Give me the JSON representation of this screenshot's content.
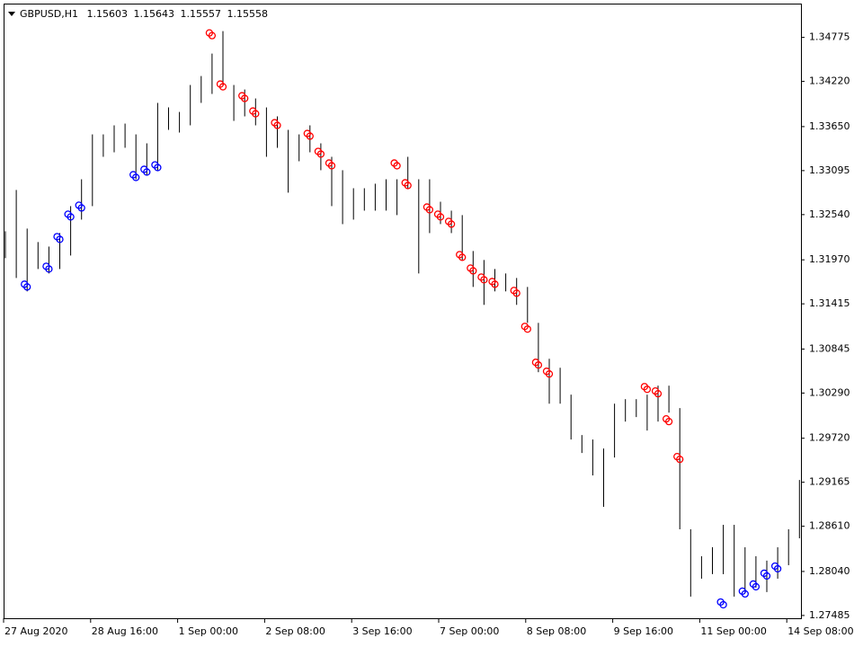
{
  "header": {
    "symbol": "GBPUSD,H1",
    "quote": [
      1.15603,
      1.15643,
      1.15557,
      1.15558
    ]
  },
  "chart_data": {
    "type": "hilo",
    "bar_color": "#000000",
    "categories": [
      "27 Aug 2020",
      null,
      null,
      null,
      null,
      null,
      null,
      null,
      "28 Aug 16:00",
      null,
      null,
      null,
      null,
      null,
      null,
      null,
      "1 Sep 00:00",
      null,
      null,
      null,
      null,
      null,
      null,
      null,
      "2 Sep 08:00",
      null,
      null,
      null,
      null,
      null,
      null,
      null,
      "3 Sep 16:00",
      null,
      null,
      null,
      null,
      null,
      null,
      null,
      "7 Sep 00:00",
      null,
      null,
      null,
      null,
      null,
      null,
      null,
      "8 Sep 08:00",
      null,
      null,
      null,
      null,
      null,
      null,
      null,
      "9 Sep 16:00",
      null,
      null,
      null,
      null,
      null,
      null,
      null,
      "11 Sep 00:00",
      null,
      null,
      null,
      null,
      null,
      null,
      null,
      "14 Sep 08:00",
      null
    ],
    "high": [
      1.3233,
      1.32851,
      1.32364,
      1.32194,
      1.32137,
      1.32307,
      1.32647,
      1.32986,
      1.33552,
      1.33552,
      1.33666,
      1.33688,
      1.33552,
      1.33439,
      1.33949,
      1.33892,
      1.33835,
      1.34175,
      1.34288,
      1.34571,
      1.34854,
      1.34175,
      1.34118,
      1.34005,
      1.33892,
      1.33779,
      1.33609,
      1.33552,
      1.33666,
      1.33439,
      1.33269,
      1.331,
      1.32873,
      1.32873,
      1.3293,
      1.32986,
      1.32986,
      1.33269,
      1.32986,
      1.32986,
      1.32703,
      1.3259,
      1.32534,
      1.32081,
      1.31968,
      1.31854,
      1.31798,
      1.31741,
      1.31628,
      1.31175,
      1.30722,
      1.30609,
      1.3027,
      1.2976,
      1.29704,
      1.2959,
      1.30156,
      1.30213,
      1.30213,
      1.3027,
      1.30383,
      1.30383,
      1.301,
      1.28572,
      1.28232,
      1.28345,
      1.28628,
      1.28628,
      1.28345,
      1.28232,
      1.28176,
      1.28345,
      1.28572,
      1.29194
    ],
    "low": [
      1.3199,
      1.31741,
      1.31572,
      1.31854,
      1.31798,
      1.31854,
      1.32024,
      1.32477,
      1.32647,
      1.33269,
      1.33326,
      1.33383,
      1.32986,
      1.33043,
      1.331,
      1.33609,
      1.33575,
      1.33666,
      1.33949,
      1.34062,
      1.34175,
      1.33722,
      1.33779,
      1.33666,
      1.33269,
      1.33383,
      1.32817,
      1.33213,
      1.33326,
      1.331,
      1.32647,
      1.3242,
      1.32477,
      1.3259,
      1.3259,
      1.3259,
      1.32534,
      1.32873,
      1.31798,
      1.32307,
      1.3242,
      1.32307,
      1.31968,
      1.31628,
      1.31402,
      1.31572,
      1.31572,
      1.31402,
      1.31175,
      1.30553,
      1.30156,
      1.30156,
      1.29704,
      1.29534,
      1.29251,
      1.28855,
      1.29477,
      1.2993,
      1.29987,
      1.29817,
      1.2993,
      1.30043,
      1.28572,
      1.27723,
      1.27949,
      1.28006,
      1.28006,
      1.27723,
      1.2778,
      1.27836,
      1.2778,
      1.27949,
      1.28119,
      1.28458
    ],
    "buy_signals": {
      "color": "#0000ff",
      "values": [
        null,
        null,
        1.31651,
        null,
        1.31877,
        1.32251,
        1.32534,
        1.32647,
        null,
        null,
        null,
        null,
        1.33032,
        1.331,
        1.33156,
        null,
        null,
        null,
        null,
        null,
        null,
        null,
        null,
        null,
        null,
        null,
        null,
        null,
        null,
        null,
        null,
        null,
        null,
        null,
        null,
        null,
        null,
        null,
        null,
        null,
        null,
        null,
        null,
        null,
        null,
        null,
        null,
        null,
        null,
        null,
        null,
        null,
        null,
        null,
        null,
        null,
        null,
        null,
        null,
        null,
        null,
        null,
        null,
        null,
        null,
        null,
        1.27643,
        null,
        1.2778,
        1.2787,
        1.28006,
        1.28096,
        null,
        null
      ]
    },
    "sell_signals": {
      "color": "#ff0000",
      "values": [
        null,
        null,
        null,
        null,
        null,
        null,
        null,
        null,
        null,
        null,
        null,
        null,
        null,
        null,
        null,
        null,
        null,
        null,
        null,
        1.3482,
        1.34175,
        null,
        1.34028,
        1.33835,
        null,
        1.33688,
        null,
        null,
        1.33552,
        1.33326,
        1.33179,
        null,
        null,
        null,
        null,
        null,
        1.33179,
        1.3293,
        null,
        1.32624,
        1.32534,
        1.32443,
        1.32024,
        1.31854,
        1.31741,
        1.31685,
        null,
        1.31572,
        1.31119,
        1.30666,
        1.30553,
        null,
        null,
        null,
        null,
        null,
        null,
        null,
        null,
        1.3036,
        1.30304,
        1.29953,
        1.29477,
        null,
        null,
        null,
        null,
        null,
        null,
        null,
        null,
        null,
        null,
        null
      ]
    },
    "ylim": [
      1.2745,
      1.3519
    ],
    "yticks": [
      1.34775,
      {
        "value": 1.3422,
        "label": "1.34220"
      },
      {
        "value": 1.3365,
        "label": "1.33650"
      },
      1.33095,
      {
        "value": 1.3254,
        "label": "1.32540"
      },
      {
        "value": 1.3197,
        "label": "1.31970"
      },
      1.31415,
      1.30845,
      {
        "value": 1.3029,
        "label": "1.30290"
      },
      {
        "value": 1.2972,
        "label": "1.29720"
      },
      1.29165,
      {
        "value": 1.2861,
        "label": "1.28610"
      },
      {
        "value": 1.2804,
        "label": "1.28040"
      },
      1.27485
    ]
  }
}
